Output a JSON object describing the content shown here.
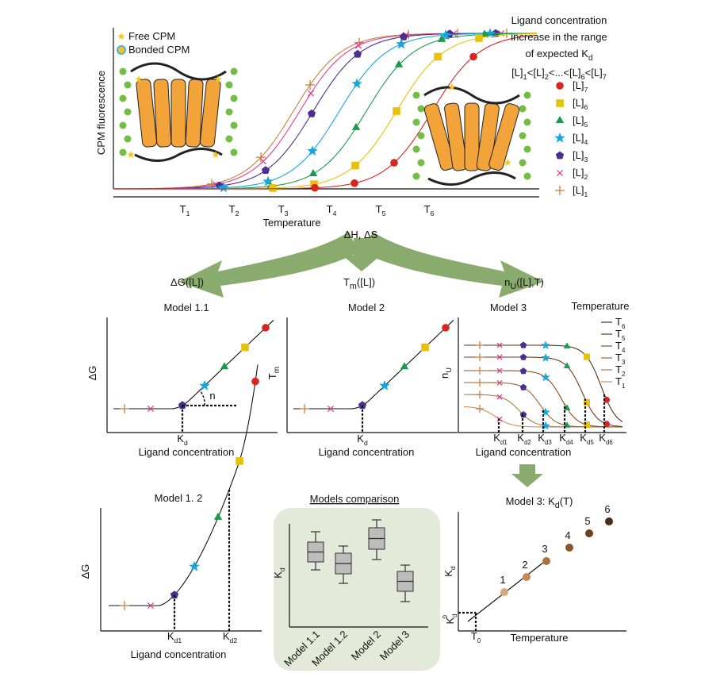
{
  "top_panel": {
    "legend": {
      "free": "Free CPM",
      "bonded": "Bonded CPM"
    },
    "y_label": "CPM fluorescence",
    "x_label": "Temperature",
    "x_ticks": [
      {
        "main": "T",
        "sub": "1"
      },
      {
        "main": "T",
        "sub": "2"
      },
      {
        "main": "T",
        "sub": "3"
      },
      {
        "main": "T",
        "sub": "4"
      },
      {
        "main": "T",
        "sub": "5"
      },
      {
        "main": "T",
        "sub": "6"
      }
    ],
    "series_title": [
      "Ligand concentration",
      "increase in the range"
    ],
    "series_title_kd": {
      "main": "of expected K",
      "sub": "d"
    },
    "series_order": [
      {
        "main": "[L]",
        "sub": "1"
      },
      {
        "main": "<[L]",
        "sub": "2"
      },
      {
        "main": "<...<[L]",
        "sub": "6"
      },
      {
        "main": "<[L]",
        "sub": "7"
      }
    ],
    "series": [
      {
        "label": {
          "main": "[L]",
          "sub": "7"
        },
        "color": "#d7261e",
        "marker": "circle"
      },
      {
        "label": {
          "main": "[L]",
          "sub": "6"
        },
        "color": "#e8c20a",
        "marker": "square"
      },
      {
        "label": {
          "main": "[L]",
          "sub": "5"
        },
        "color": "#1a9a4a",
        "marker": "triangle"
      },
      {
        "label": {
          "main": "[L]",
          "sub": "4"
        },
        "color": "#1aa6dc",
        "marker": "star"
      },
      {
        "label": {
          "main": "[L]",
          "sub": "3"
        },
        "color": "#4b2e8f",
        "marker": "pentagon"
      },
      {
        "label": {
          "main": "[L]",
          "sub": "2"
        },
        "color": "#e0418f",
        "marker": "cross"
      },
      {
        "label": {
          "main": "[L]",
          "sub": "1"
        },
        "color": "#c87f3f",
        "marker": "plus"
      }
    ]
  },
  "thermo": "ΔH, ΔS",
  "branches": [
    {
      "main": "ΔG([L])"
    },
    {
      "main": "T",
      "sub": "m",
      "rest": "([L])"
    },
    {
      "main": "n",
      "sub": "U",
      "rest": "([L],T)"
    }
  ],
  "model_1_1": {
    "title": "Model 1.1",
    "y_label": "ΔG",
    "kd": {
      "main": "K",
      "sub": "d"
    },
    "slope": "n",
    "x_label": "Ligand concentration"
  },
  "model_2": {
    "title": "Model 2",
    "y_label": {
      "main": "T",
      "sub": "m"
    },
    "kd": {
      "main": "K",
      "sub": "d"
    },
    "x_label": "Ligand concentration"
  },
  "model_3": {
    "title": "Model 3",
    "legend_title": "Temperature",
    "temperatures": [
      {
        "main": "T",
        "sub": "6"
      },
      {
        "main": "T",
        "sub": "5"
      },
      {
        "main": "T",
        "sub": "4"
      },
      {
        "main": "T",
        "sub": "3"
      },
      {
        "main": "T",
        "sub": "2"
      },
      {
        "main": "T",
        "sub": "1"
      }
    ],
    "y_label": {
      "main": "n",
      "sub": "U"
    },
    "kds": [
      {
        "main": "K",
        "sub": "d1"
      },
      {
        "main": "K",
        "sub": "d2"
      },
      {
        "main": "K",
        "sub": "d3"
      },
      {
        "main": "K",
        "sub": "d4"
      },
      {
        "main": "K",
        "sub": "d5"
      },
      {
        "main": "K",
        "sub": "d6"
      }
    ],
    "x_label": "Ligand concentration"
  },
  "model_1_2": {
    "title": "Model 1. 2",
    "y_label": "ΔG",
    "kds": [
      {
        "main": "K",
        "sub": "d1"
      },
      {
        "main": "K",
        "sub": "d2"
      }
    ],
    "x_label": "Ligand concentration"
  },
  "comparison": {
    "title": "Models comparison",
    "y_label": {
      "main": "K",
      "sub": "d"
    },
    "categories": [
      "Model 1.1",
      "Model 1.2",
      "Model 2",
      "Model 3"
    ]
  },
  "model_3_kd": {
    "title": {
      "main": "Model 3: K",
      "sub": "d",
      "rest": "(T)"
    },
    "points": [
      "1",
      "2",
      "3",
      "4",
      "5",
      "6"
    ],
    "y_label": {
      "main": "K",
      "sub": "d"
    },
    "kd0": {
      "main": "K",
      "sub": "d",
      "sup": "0"
    },
    "t0": {
      "main": "T",
      "sub": "0"
    },
    "x_label": "Temperature"
  }
}
